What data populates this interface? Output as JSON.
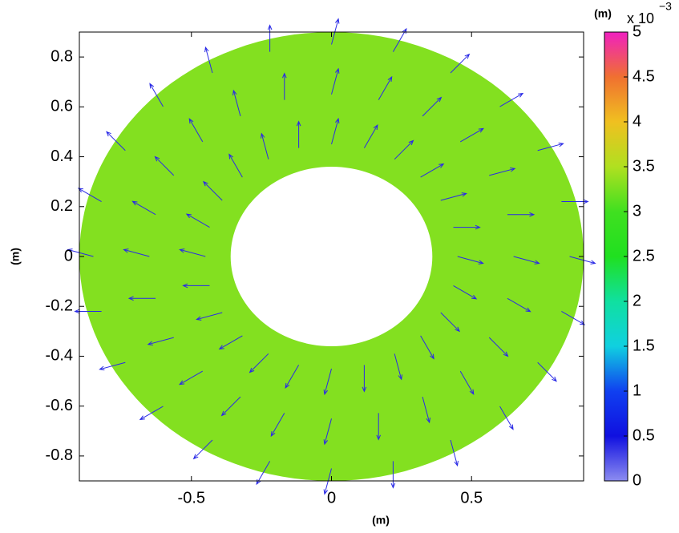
{
  "chart_data": {
    "type": "quiver",
    "xlabel": "(m)",
    "ylabel": "(m)",
    "xlim": [
      -0.9,
      0.9
    ],
    "ylim": [
      -0.9,
      0.9
    ],
    "xticks": [
      -0.5,
      0,
      0.5
    ],
    "yticks": [
      -0.8,
      -0.6,
      -0.4,
      -0.2,
      0,
      0.2,
      0.4,
      0.6,
      0.8
    ],
    "arrow_color": "#2a2ae6",
    "field": {
      "value": 3.3,
      "inner_radius": 0.36,
      "outer_radius": 0.9
    },
    "x": [
      0.45,
      0.65,
      0.85,
      0.435,
      0.628,
      0.821,
      0.39,
      0.563,
      0.736,
      0.318,
      0.46,
      0.601,
      0.225,
      0.325,
      0.425,
      0.117,
      0.168,
      0.22,
      0,
      0,
      0,
      -0.117,
      -0.168,
      -0.22,
      -0.225,
      -0.325,
      -0.425,
      -0.318,
      -0.46,
      -0.601,
      -0.39,
      -0.563,
      -0.736,
      -0.435,
      -0.628,
      -0.821,
      -0.45,
      -0.65,
      -0.85,
      -0.435,
      -0.628,
      -0.821,
      -0.39,
      -0.563,
      -0.736,
      -0.318,
      -0.46,
      -0.601,
      -0.225,
      -0.325,
      -0.425,
      -0.117,
      -0.168,
      -0.22,
      0,
      0,
      0,
      0.117,
      0.168,
      0.22,
      0.225,
      0.325,
      0.425,
      0.318,
      0.46,
      0.601,
      0.39,
      0.563,
      0.736,
      0.435,
      0.628,
      0.821
    ],
    "y": [
      0,
      0,
      0,
      0.117,
      0.168,
      0.22,
      0.225,
      0.325,
      0.425,
      0.318,
      0.46,
      0.601,
      0.39,
      0.563,
      0.736,
      0.435,
      0.628,
      0.821,
      0.45,
      0.65,
      0.85,
      0.435,
      0.628,
      0.821,
      0.39,
      0.563,
      0.736,
      0.318,
      0.46,
      0.601,
      0.225,
      0.325,
      0.425,
      0.117,
      0.168,
      0.22,
      0,
      0,
      0,
      -0.117,
      -0.168,
      -0.22,
      -0.225,
      -0.325,
      -0.425,
      -0.318,
      -0.46,
      -0.601,
      -0.39,
      -0.563,
      -0.736,
      -0.435,
      -0.628,
      -0.821,
      -0.45,
      -0.65,
      -0.85,
      -0.435,
      -0.628,
      -0.821,
      -0.39,
      -0.563,
      -0.736,
      -0.318,
      -0.46,
      -0.601,
      -0.225,
      -0.325,
      -0.425,
      -0.117,
      -0.168,
      -0.22
    ],
    "u": [
      2.9,
      2.9,
      2.9,
      3,
      3,
      3,
      2.9,
      2.9,
      2.9,
      2.6,
      2.6,
      2.6,
      2.12,
      2.12,
      2.12,
      1.5,
      1.5,
      1.5,
      0.78,
      0.78,
      0.78,
      0,
      0,
      0,
      -0.78,
      -0.78,
      -0.78,
      -1.5,
      -1.5,
      -1.5,
      -2.12,
      -2.12,
      -2.12,
      -2.6,
      -2.6,
      -2.6,
      -2.9,
      -2.9,
      -2.9,
      -3,
      -3,
      -3,
      -2.9,
      -2.9,
      -2.9,
      -2.6,
      -2.6,
      -2.6,
      -2.12,
      -2.12,
      -2.12,
      -1.5,
      -1.5,
      -1.5,
      -0.78,
      -0.78,
      -0.78,
      0,
      0,
      0,
      0.78,
      0.78,
      0.78,
      1.5,
      1.5,
      1.5,
      2.12,
      2.12,
      2.12,
      2.6,
      2.6,
      2.6
    ],
    "v": [
      -0.78,
      -0.78,
      -0.78,
      0,
      0,
      0,
      0.78,
      0.78,
      0.78,
      1.5,
      1.5,
      1.5,
      2.12,
      2.12,
      2.12,
      2.6,
      2.6,
      2.6,
      2.9,
      2.9,
      2.9,
      3,
      3,
      3,
      2.9,
      2.9,
      2.9,
      2.6,
      2.6,
      2.6,
      2.12,
      2.12,
      2.12,
      1.5,
      1.5,
      1.5,
      0.78,
      0.78,
      0.78,
      0,
      0,
      0,
      -0.78,
      -0.78,
      -0.78,
      -1.5,
      -1.5,
      -1.5,
      -2.12,
      -2.12,
      -2.12,
      -2.6,
      -2.6,
      -2.6,
      -2.9,
      -2.9,
      -2.9,
      -3,
      -3,
      -3,
      -2.9,
      -2.9,
      -2.9,
      -2.6,
      -2.6,
      -2.6,
      -2.12,
      -2.12,
      -2.12,
      -1.5,
      -1.5,
      -1.5
    ],
    "colorbar": {
      "label": "(m)",
      "multiplier": "x 10",
      "exponent": "−3",
      "lim": [
        0,
        5
      ],
      "ticks": [
        0,
        0.5,
        1,
        1.5,
        2,
        2.5,
        3,
        3.5,
        4,
        4.5,
        5
      ],
      "colormap": [
        "#8c8cf0",
        "#1010e0",
        "#1040f0",
        "#10d0e0",
        "#10e0a0",
        "#20e020",
        "#40e020",
        "#b0e020",
        "#f0c020",
        "#f07030",
        "#f020c0"
      ]
    }
  }
}
